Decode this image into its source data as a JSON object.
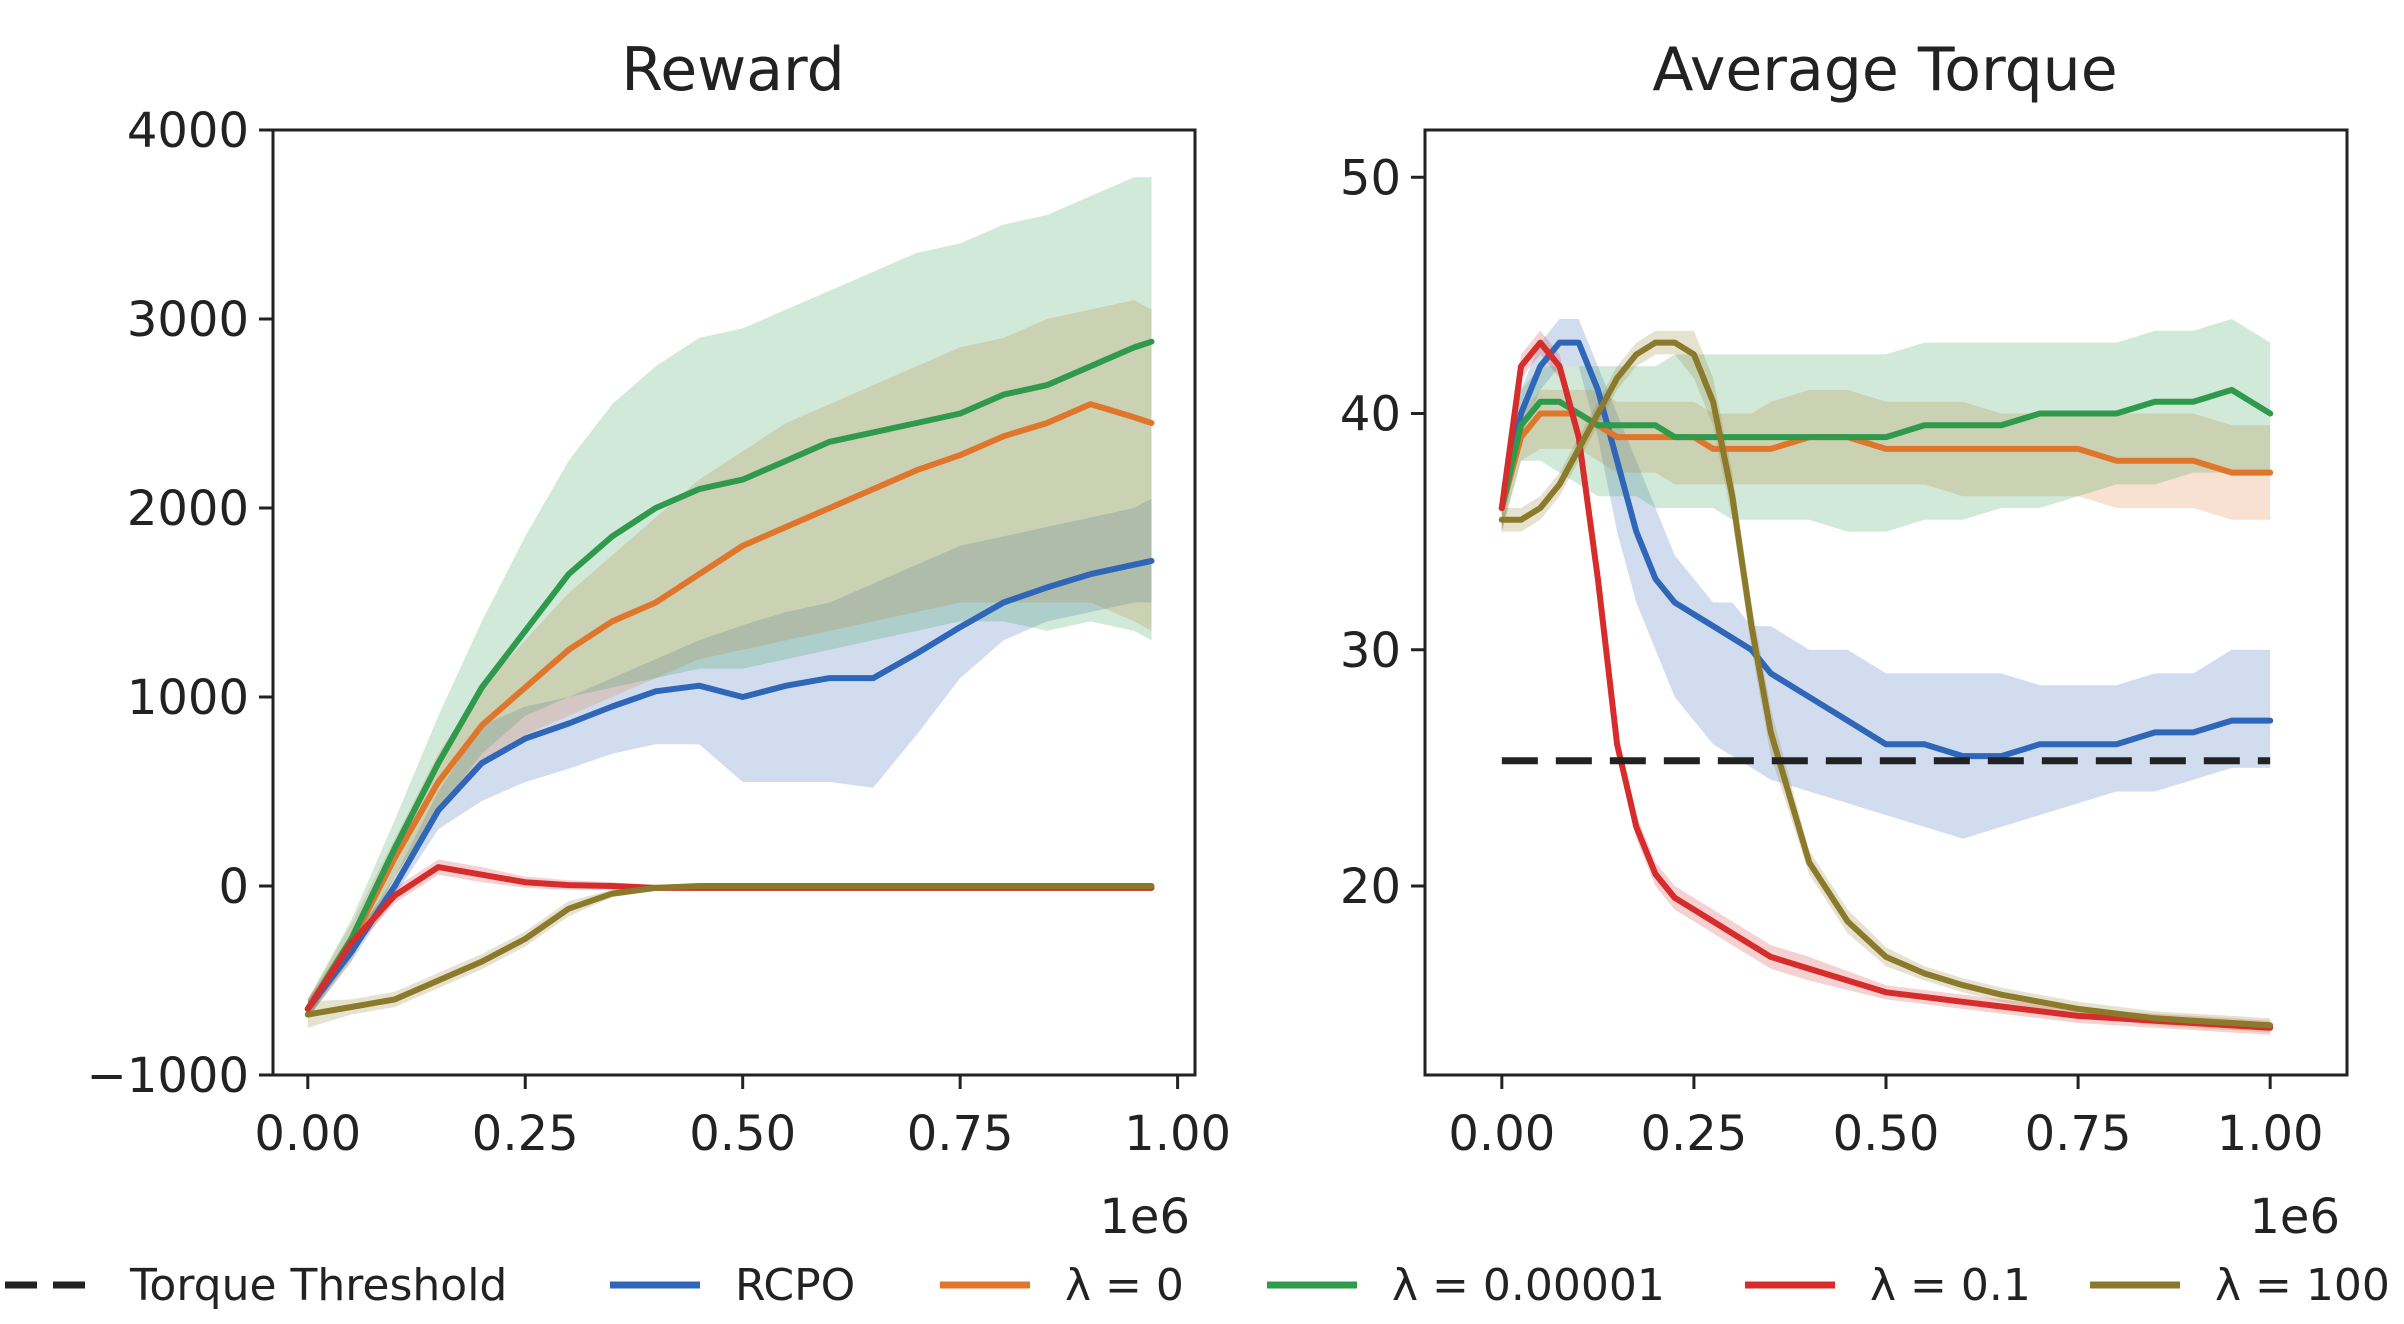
{
  "colors": {
    "rcpo": "#2f66b8",
    "lam0": "#e0762b",
    "lam1e5": "#2f9a4c",
    "lam01": "#d62c2c",
    "lam100": "#8b7a2b",
    "threshold": "#222222"
  },
  "chart_data": [
    {
      "type": "line",
      "title": "Reward",
      "xlabel": "",
      "ylabel": "",
      "x_multiplier_label": "1e6",
      "xlim": [
        -0.04,
        1.02
      ],
      "ylim": [
        -1000,
        4000
      ],
      "xticks": [
        "0.00",
        "0.25",
        "0.50",
        "0.75",
        "1.00"
      ],
      "yticks": [
        "−1000",
        "0",
        "1000",
        "2000",
        "3000",
        "4000"
      ],
      "x": [
        0.0,
        0.05,
        0.1,
        0.15,
        0.2,
        0.25,
        0.3,
        0.35,
        0.4,
        0.45,
        0.5,
        0.55,
        0.6,
        0.65,
        0.7,
        0.75,
        0.8,
        0.85,
        0.9,
        0.95,
        0.97
      ],
      "series": [
        {
          "key": "rcpo",
          "values": [
            -650,
            -350,
            0,
            400,
            650,
            780,
            860,
            950,
            1030,
            1060,
            1000,
            1060,
            1100,
            1100,
            1230,
            1370,
            1500,
            1580,
            1650,
            1700,
            1720
          ],
          "lower": [
            -700,
            -400,
            -50,
            300,
            450,
            550,
            620,
            700,
            750,
            750,
            550,
            550,
            550,
            520,
            800,
            1100,
            1300,
            1400,
            1450,
            1500,
            1500
          ],
          "upper": [
            -600,
            -300,
            50,
            500,
            850,
            950,
            1000,
            1100,
            1200,
            1300,
            1380,
            1450,
            1500,
            1600,
            1700,
            1800,
            1850,
            1900,
            1950,
            2000,
            2050
          ]
        },
        {
          "key": "lam0",
          "values": [
            -650,
            -300,
            150,
            550,
            850,
            1050,
            1250,
            1400,
            1500,
            1650,
            1800,
            1900,
            2000,
            2100,
            2200,
            2280,
            2380,
            2450,
            2550,
            2480,
            2450
          ],
          "lower": [
            -700,
            -400,
            50,
            400,
            650,
            800,
            900,
            1000,
            1100,
            1200,
            1250,
            1300,
            1350,
            1400,
            1450,
            1500,
            1500,
            1500,
            1500,
            1400,
            1350
          ],
          "upper": [
            -600,
            -200,
            250,
            700,
            1050,
            1300,
            1550,
            1750,
            1950,
            2150,
            2300,
            2450,
            2550,
            2650,
            2750,
            2850,
            2900,
            3000,
            3050,
            3100,
            3050
          ]
        },
        {
          "key": "lam1e5",
          "values": [
            -650,
            -280,
            200,
            650,
            1050,
            1350,
            1650,
            1850,
            2000,
            2100,
            2150,
            2250,
            2350,
            2400,
            2450,
            2500,
            2600,
            2650,
            2750,
            2850,
            2880
          ],
          "lower": [
            -700,
            -380,
            50,
            400,
            700,
            900,
            1000,
            1050,
            1100,
            1150,
            1150,
            1200,
            1250,
            1300,
            1350,
            1400,
            1400,
            1350,
            1400,
            1350,
            1300
          ],
          "upper": [
            -600,
            -180,
            350,
            900,
            1400,
            1850,
            2250,
            2550,
            2750,
            2900,
            2950,
            3050,
            3150,
            3250,
            3350,
            3400,
            3500,
            3550,
            3650,
            3750,
            3750
          ]
        },
        {
          "key": "lam01",
          "values": [
            -650,
            -300,
            -50,
            100,
            60,
            20,
            5,
            0,
            -10,
            -10,
            -10,
            -10,
            -10,
            -10,
            -10,
            -10,
            -10,
            -10,
            -10,
            -10,
            -10
          ],
          "lower": [
            -700,
            -350,
            -90,
            60,
            20,
            -10,
            -20,
            -20,
            -25,
            -25,
            -25,
            -25,
            -25,
            -25,
            -25,
            -25,
            -25,
            -25,
            -25,
            -25,
            -25
          ],
          "upper": [
            -600,
            -250,
            -10,
            140,
            100,
            50,
            30,
            20,
            5,
            5,
            5,
            5,
            5,
            5,
            5,
            5,
            5,
            5,
            5,
            5,
            5
          ]
        },
        {
          "key": "lam100",
          "values": [
            -680,
            -640,
            -600,
            -500,
            -400,
            -280,
            -120,
            -40,
            -10,
            0,
            0,
            0,
            0,
            0,
            0,
            0,
            0,
            0,
            0,
            0,
            0
          ],
          "lower": [
            -750,
            -680,
            -640,
            -540,
            -440,
            -320,
            -160,
            -60,
            -25,
            -15,
            -15,
            -15,
            -15,
            -15,
            -15,
            -15,
            -15,
            -15,
            -15,
            -15,
            -15
          ],
          "upper": [
            -610,
            -600,
            -560,
            -460,
            -360,
            -240,
            -80,
            -20,
            5,
            15,
            15,
            15,
            15,
            15,
            15,
            15,
            15,
            15,
            15,
            15,
            15
          ]
        }
      ]
    },
    {
      "type": "line",
      "title": "Average Torque",
      "xlabel": "",
      "ylabel": "",
      "x_multiplier_label": "1e6",
      "xlim": [
        -0.1,
        1.1
      ],
      "ylim": [
        12,
        52
      ],
      "xticks": [
        "0.00",
        "0.25",
        "0.50",
        "0.75",
        "1.00"
      ],
      "yticks": [
        "20",
        "30",
        "40",
        "50"
      ],
      "x": [
        0.0,
        0.025,
        0.05,
        0.075,
        0.1,
        0.125,
        0.15,
        0.175,
        0.2,
        0.225,
        0.25,
        0.275,
        0.3,
        0.325,
        0.35,
        0.4,
        0.45,
        0.5,
        0.55,
        0.6,
        0.65,
        0.7,
        0.75,
        0.8,
        0.85,
        0.9,
        0.95,
        1.0
      ],
      "series": [
        {
          "key": "rcpo",
          "values": [
            36,
            40,
            42,
            43,
            43,
            41,
            38,
            35,
            33,
            32,
            31.5,
            31,
            30.5,
            30,
            29,
            28,
            27,
            26,
            26,
            25.5,
            25.5,
            26,
            26,
            26,
            26.5,
            26.5,
            27,
            27
          ],
          "lower": [
            35,
            39,
            41,
            42,
            42,
            39,
            35,
            32,
            30,
            28,
            27,
            26,
            25.5,
            25,
            24.5,
            24,
            23.5,
            23,
            22.5,
            22,
            22.5,
            23,
            23.5,
            24,
            24,
            24.5,
            25,
            25
          ],
          "upper": [
            37,
            41,
            43,
            44,
            44,
            42,
            40,
            38,
            36,
            34,
            33,
            32,
            32,
            31,
            31,
            30,
            30,
            29,
            29,
            29,
            29,
            28.5,
            28.5,
            28.5,
            29,
            29,
            30,
            30
          ]
        },
        {
          "key": "lam0",
          "values": [
            36,
            39,
            40,
            40,
            40,
            39.5,
            39,
            39,
            39,
            39,
            39,
            38.5,
            38.5,
            38.5,
            38.5,
            39,
            39,
            38.5,
            38.5,
            38.5,
            38.5,
            38.5,
            38.5,
            38,
            38,
            38,
            37.5,
            37.5
          ],
          "lower": [
            35,
            38,
            38.5,
            38.5,
            38.5,
            38,
            37.5,
            37.5,
            37.5,
            37,
            37,
            37,
            37,
            37,
            37,
            37,
            37,
            37,
            37,
            36.5,
            36.5,
            36.5,
            36.5,
            36,
            36,
            36,
            35.5,
            35.5
          ],
          "upper": [
            37,
            40,
            41,
            41,
            41,
            41,
            40.5,
            40.5,
            40.5,
            40.5,
            40.5,
            40,
            40,
            40,
            40.5,
            41,
            41,
            40.5,
            40.5,
            40.5,
            40,
            40,
            40,
            40,
            40,
            40,
            39.5,
            39.5
          ]
        },
        {
          "key": "lam1e5",
          "values": [
            36,
            39.5,
            40.5,
            40.5,
            40,
            39.5,
            39.5,
            39.5,
            39.5,
            39,
            39,
            39,
            39,
            39,
            39,
            39,
            39,
            39,
            39.5,
            39.5,
            39.5,
            40,
            40,
            40,
            40.5,
            40.5,
            41,
            40
          ],
          "lower": [
            35,
            38,
            38,
            37.5,
            37,
            36.5,
            36.5,
            36.5,
            36,
            36,
            36,
            36,
            35.5,
            35.5,
            35.5,
            35.5,
            35,
            35,
            35.5,
            35.5,
            36,
            36,
            36.5,
            37,
            37,
            37.5,
            37.5,
            37.5
          ],
          "upper": [
            37,
            41,
            42,
            42,
            42,
            42,
            42,
            42,
            42,
            42.5,
            42.5,
            42.5,
            42.5,
            42.5,
            42.5,
            42.5,
            42.5,
            42.5,
            43,
            43,
            43,
            43,
            43,
            43,
            43.5,
            43.5,
            44,
            43
          ]
        },
        {
          "key": "lam01",
          "values": [
            36,
            42,
            43,
            42,
            39,
            33,
            26,
            22.5,
            20.5,
            19.5,
            19,
            18.5,
            18,
            17.5,
            17,
            16.5,
            16,
            15.5,
            15.3,
            15.1,
            14.9,
            14.7,
            14.5,
            14.4,
            14.3,
            14.2,
            14.1,
            14
          ],
          "lower": [
            35.5,
            41.5,
            42.5,
            41.5,
            38.5,
            32.5,
            25.5,
            22,
            20,
            19,
            18.5,
            18,
            17.5,
            17,
            16.5,
            16,
            15.6,
            15.2,
            15,
            14.8,
            14.6,
            14.4,
            14.2,
            14.1,
            14,
            13.9,
            13.8,
            13.7
          ],
          "upper": [
            36.5,
            42.5,
            43.5,
            42.5,
            39.5,
            33.5,
            26.5,
            23,
            21,
            20,
            19.5,
            19,
            18.5,
            18,
            17.5,
            17,
            16.4,
            15.8,
            15.6,
            15.4,
            15.2,
            15,
            14.8,
            14.7,
            14.6,
            14.5,
            14.4,
            14.3
          ]
        },
        {
          "key": "lam100",
          "values": [
            35.5,
            35.5,
            36,
            37,
            38.5,
            40,
            41.5,
            42.5,
            43,
            43,
            42.5,
            40.5,
            36.5,
            31,
            26.5,
            21,
            18.5,
            17,
            16.3,
            15.8,
            15.4,
            15.1,
            14.8,
            14.6,
            14.4,
            14.3,
            14.2,
            14.1
          ],
          "lower": [
            35,
            35,
            35.5,
            36.5,
            38,
            39.5,
            41,
            42,
            42.5,
            42.5,
            41.5,
            39.5,
            35.5,
            30,
            25.5,
            20.5,
            18,
            16.6,
            16,
            15.5,
            15.1,
            14.8,
            14.5,
            14.3,
            14.1,
            14,
            13.9,
            13.8
          ],
          "upper": [
            36,
            36,
            36.5,
            37.5,
            39,
            40.5,
            42,
            43,
            43.5,
            43.5,
            43.5,
            41.5,
            37.5,
            32,
            27.5,
            21.5,
            19,
            17.4,
            16.6,
            16.1,
            15.7,
            15.4,
            15.1,
            14.9,
            14.7,
            14.6,
            14.5,
            14.4
          ]
        }
      ],
      "threshold": {
        "key": "threshold",
        "y": 25.3,
        "x": [
          0.0,
          1.0
        ]
      }
    }
  ],
  "legend": {
    "placement": "bottom",
    "items": [
      {
        "key": "threshold",
        "label": "Torque Threshold",
        "dashed": true
      },
      {
        "key": "rcpo",
        "label": "RCPO"
      },
      {
        "key": "lam0",
        "label": "λ = 0"
      },
      {
        "key": "lam1e5",
        "label": "λ = 0.00001"
      },
      {
        "key": "lam01",
        "label": "λ = 0.1"
      },
      {
        "key": "lam100",
        "label": "λ = 100"
      }
    ]
  }
}
